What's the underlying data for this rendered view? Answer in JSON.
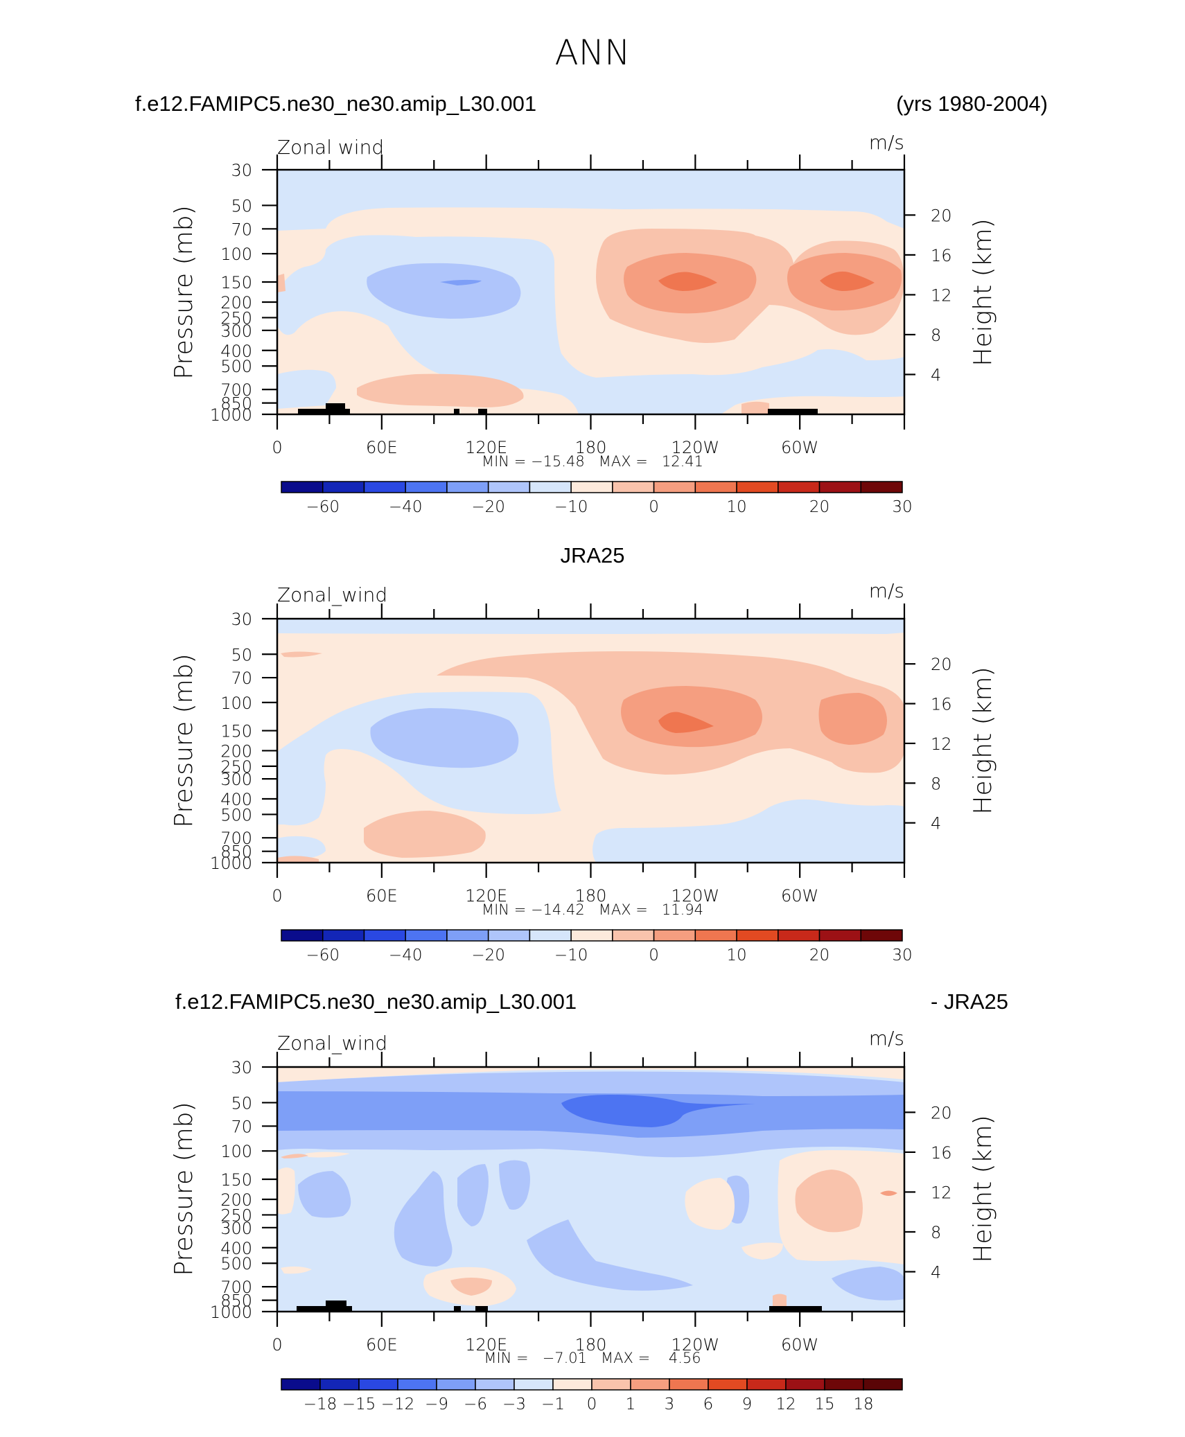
{
  "page": {
    "title": "ANN"
  },
  "scales": {
    "absolute": {
      "colors": [
        "#0a0c8c",
        "#1326b7",
        "#2a48e2",
        "#4d74f2",
        "#7e9ff7",
        "#afc5fb",
        "#d6e6fb",
        "#fdeadc",
        "#f9c3ac",
        "#f59e80",
        "#ef7650",
        "#e24a22",
        "#c8291a",
        "#9c1115",
        "#6e0708"
      ],
      "tick_labels": [
        "-60",
        "-40",
        "-20",
        "-10",
        "0",
        "10",
        "20",
        "30"
      ],
      "tick_positions": [
        1,
        3,
        5,
        7,
        9,
        11,
        13,
        15
      ]
    },
    "difference": {
      "colors": [
        "#0a0c8c",
        "#1326b7",
        "#2a48e2",
        "#4d74f2",
        "#7e9ff7",
        "#afc5fb",
        "#d6e6fb",
        "#fdeadc",
        "#f9c3ac",
        "#f59e80",
        "#ef7650",
        "#e24a22",
        "#c8291a",
        "#9c1115",
        "#6e0708",
        "#5a0506"
      ],
      "tick_labels": [
        "-18",
        "-15",
        "-12",
        "-9",
        "-6",
        "-3",
        "-1",
        "0",
        "1",
        "3",
        "6",
        "9",
        "12",
        "15",
        "18"
      ],
      "tick_positions": [
        1,
        2,
        3,
        4,
        5,
        6,
        7,
        8,
        9,
        10,
        11,
        12,
        13,
        14,
        15
      ]
    }
  },
  "chart_data": [
    {
      "type": "heatmap",
      "panel_id": "model",
      "title_left": "f.e12.FAMIPC5.ne30_ne30.amip_L30.001",
      "title_right": "(yrs 1980-2004)",
      "variable": "Zonal wind",
      "units": "m/s",
      "ylabel": "Pressure (mb)",
      "ylabel_right": "Height (km)",
      "x_ticks": [
        "0",
        "60E",
        "120E",
        "180",
        "120W",
        "60W"
      ],
      "y_ticks": [
        "30",
        "50",
        "70",
        "100",
        "150",
        "200",
        "250",
        "300",
        "400",
        "500",
        "700",
        "850",
        "1000"
      ],
      "y_right_ticks": [
        "20",
        "16",
        "12",
        "8",
        "4"
      ],
      "min_max": "MIN = −15.48   MAX =   12.41",
      "min": -15.48,
      "max": 12.41,
      "features": [
        {
          "kind": "easterly",
          "lon": 105,
          "p": 150,
          "value": -15.48
        },
        {
          "kind": "westerly",
          "lon": 232,
          "p": 150,
          "value": 12.41
        },
        {
          "kind": "westerly",
          "lon": 320,
          "p": 150,
          "value": 11.0
        }
      ]
    },
    {
      "type": "heatmap",
      "panel_id": "obs",
      "title_center": "JRA25",
      "variable": "Zonal_wind",
      "units": "m/s",
      "ylabel": "Pressure (mb)",
      "ylabel_right": "Height (km)",
      "x_ticks": [
        "0",
        "60E",
        "120E",
        "180",
        "120W",
        "60W"
      ],
      "y_ticks": [
        "30",
        "50",
        "70",
        "100",
        "150",
        "200",
        "250",
        "300",
        "400",
        "500",
        "700",
        "850",
        "1000"
      ],
      "y_right_ticks": [
        "20",
        "16",
        "12",
        "8",
        "4"
      ],
      "min_max": "MIN = −14.42   MAX =   11.94",
      "min": -14.42,
      "max": 11.94,
      "features": [
        {
          "kind": "easterly",
          "lon": 100,
          "p": 150,
          "value": -14.42
        },
        {
          "kind": "westerly",
          "lon": 228,
          "p": 150,
          "value": 11.94
        }
      ]
    },
    {
      "type": "heatmap",
      "panel_id": "diff",
      "title_left": "f.e12.FAMIPC5.ne30_ne30.amip_L30.001",
      "title_right": "- JRA25",
      "variable": "Zonal_wind",
      "units": "m/s",
      "ylabel": "Pressure (mb)",
      "ylabel_right": "Height (km)",
      "x_ticks": [
        "0",
        "60E",
        "120E",
        "180",
        "120W",
        "60W"
      ],
      "y_ticks": [
        "30",
        "50",
        "70",
        "100",
        "150",
        "200",
        "250",
        "300",
        "400",
        "500",
        "700",
        "850",
        "1000"
      ],
      "y_right_ticks": [
        "20",
        "16",
        "12",
        "8",
        "4"
      ],
      "min_max": "MIN =   −7.01   MAX =    4.56",
      "min": -7.01,
      "max": 4.56,
      "features": [
        {
          "kind": "negative",
          "lon": 205,
          "p": 50,
          "value": -7.01
        },
        {
          "kind": "positive",
          "lon": 315,
          "p": 200,
          "value": 4.56
        }
      ]
    }
  ]
}
